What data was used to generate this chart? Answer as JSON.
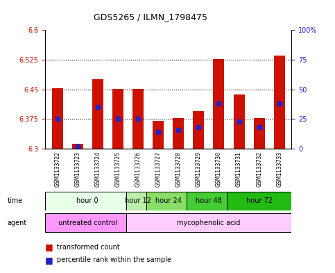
{
  "title": "GDS5265 / ILMN_1798475",
  "samples": [
    "GSM1133722",
    "GSM1133723",
    "GSM1133724",
    "GSM1133725",
    "GSM1133726",
    "GSM1133727",
    "GSM1133728",
    "GSM1133729",
    "GSM1133730",
    "GSM1133731",
    "GSM1133732",
    "GSM1133733"
  ],
  "transformed_count": [
    6.453,
    6.313,
    6.475,
    6.452,
    6.452,
    6.37,
    6.378,
    6.395,
    6.527,
    6.438,
    6.378,
    6.535
  ],
  "percentile_rank": [
    25,
    2,
    35,
    25,
    25,
    14,
    16,
    18,
    38,
    23,
    18,
    38
  ],
  "base_value": 6.3,
  "ylim_left": [
    6.3,
    6.6
  ],
  "ylim_right": [
    0,
    100
  ],
  "yticks_left": [
    6.3,
    6.375,
    6.45,
    6.525,
    6.6
  ],
  "yticks_right": [
    0,
    25,
    50,
    75,
    100
  ],
  "ytick_labels_left": [
    "6.3",
    "6.375",
    "6.45",
    "6.525",
    "6.6"
  ],
  "ytick_labels_right": [
    "0",
    "25",
    "50",
    "75",
    "100%"
  ],
  "hgrid_values": [
    6.375,
    6.45,
    6.525
  ],
  "time_groups": [
    {
      "label": "hour 0",
      "start": 0,
      "end": 4,
      "color": "#e8ffe8"
    },
    {
      "label": "hour 12",
      "start": 4,
      "end": 5,
      "color": "#bbeeaa"
    },
    {
      "label": "hour 24",
      "start": 5,
      "end": 7,
      "color": "#88dd66"
    },
    {
      "label": "hour 48",
      "start": 7,
      "end": 9,
      "color": "#44cc33"
    },
    {
      "label": "hour 72",
      "start": 9,
      "end": 12,
      "color": "#22bb11"
    }
  ],
  "agent_groups": [
    {
      "label": "untreated control",
      "start": 0,
      "end": 4,
      "color": "#ff99ff"
    },
    {
      "label": "mycophenolic acid",
      "start": 4,
      "end": 12,
      "color": "#ffccff"
    }
  ],
  "bar_color": "#cc1100",
  "percentile_color": "#2222cc",
  "tick_color_left": "#cc1100",
  "tick_color_right": "#2222cc",
  "background_color": "#ffffff",
  "sample_bg_color": "#cccccc",
  "bar_width": 0.55
}
